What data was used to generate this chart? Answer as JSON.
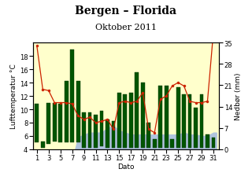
{
  "title": "Bergen – Florida",
  "subtitle": "Oktober 2011",
  "xlabel": "Dato",
  "ylabel_left": "Lufttemperatur °C",
  "ylabel_right": "Nedbør (mm)",
  "days": [
    1,
    2,
    3,
    4,
    5,
    6,
    7,
    8,
    9,
    10,
    11,
    12,
    13,
    14,
    15,
    16,
    17,
    18,
    19,
    20,
    21,
    22,
    23,
    24,
    25,
    26,
    27,
    28,
    29,
    30,
    31
  ],
  "bar_max": [
    10.8,
    5.2,
    11.0,
    11.0,
    10.8,
    14.2,
    19.0,
    14.3,
    9.5,
    9.5,
    9.2,
    9.8,
    8.5,
    8.2,
    12.5,
    12.2,
    12.5,
    15.5,
    14.0,
    8.0,
    5.5,
    13.5,
    13.5,
    5.5,
    13.3,
    12.3,
    12.2,
    10.2,
    12.2,
    6.2,
    5.8
  ],
  "bar_min": [
    5.0,
    4.2,
    4.8,
    5.2,
    5.0,
    5.0,
    5.0,
    5.0,
    4.2,
    4.2,
    4.2,
    4.5,
    4.2,
    4.2,
    4.2,
    4.2,
    4.2,
    4.2,
    4.2,
    4.2,
    4.2,
    4.2,
    4.2,
    4.2,
    4.2,
    4.2,
    4.2,
    4.2,
    4.2,
    4.2,
    4.2
  ],
  "temp_line": [
    19.5,
    13.0,
    12.8,
    11.0,
    11.0,
    11.0,
    10.8,
    9.0,
    8.5,
    8.8,
    8.0,
    8.2,
    8.5,
    7.0,
    11.0,
    11.2,
    11.0,
    11.2,
    12.5,
    7.0,
    6.5,
    11.5,
    12.0,
    13.5,
    14.0,
    13.5,
    11.2,
    11.0,
    11.0,
    11.2,
    21.5
  ],
  "blue_fill_x": [
    7.5,
    8,
    9,
    10,
    11,
    12,
    13,
    14,
    15,
    16,
    17,
    18,
    19,
    20,
    21,
    22,
    23,
    24,
    25,
    26,
    27,
    28,
    29,
    30,
    31,
    31.5
  ],
  "blue_fill_y": [
    4.0,
    5.8,
    6.2,
    6.5,
    6.5,
    6.5,
    7.2,
    7.5,
    6.8,
    6.5,
    6.2,
    6.2,
    6.2,
    6.2,
    6.2,
    6.2,
    6.2,
    6.2,
    6.2,
    6.5,
    6.2,
    6.2,
    6.0,
    6.0,
    6.5,
    6.5
  ],
  "ylim_left": [
    4.0,
    20.0
  ],
  "ylim_right": [
    0.0,
    35.0
  ],
  "yticks_left": [
    4.0,
    6.0,
    8.0,
    10.0,
    12.0,
    14.0,
    16.0,
    18.0
  ],
  "yticks_right": [
    0.0,
    7.0,
    14.0,
    21.0,
    28.0,
    35.0
  ],
  "xlim": [
    0.3,
    32.0
  ],
  "bg_color": "#ffffcc",
  "bar_color": "#005500",
  "rain_color": "#b0c4de",
  "line_color": "#cc2200",
  "marker_color": "#cc2200",
  "title_fontsize": 10,
  "subtitle_fontsize": 8,
  "label_fontsize": 6.5,
  "tick_fontsize": 6
}
